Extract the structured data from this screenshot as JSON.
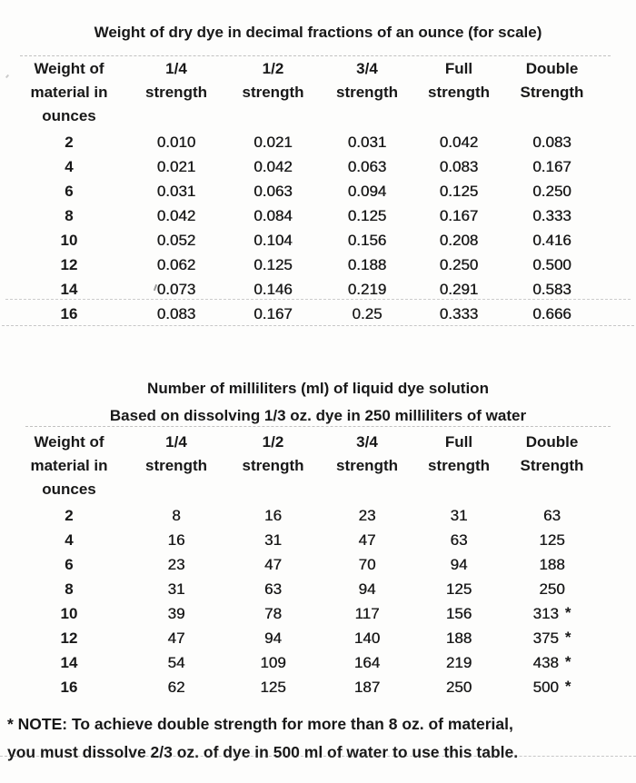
{
  "page": {
    "background_color": "#fdfdfc",
    "text_color": "#181818"
  },
  "table1": {
    "title": "Weight of dry dye in decimal fractions of an ounce (for scale)",
    "columns": [
      [
        "Weight of",
        "material in",
        "ounces"
      ],
      [
        "1/4",
        "strength"
      ],
      [
        "1/2",
        "strength"
      ],
      [
        "3/4",
        "strength"
      ],
      [
        "Full",
        "strength"
      ],
      [
        "Double",
        "Strength"
      ]
    ],
    "rows": [
      {
        "ounces": "2",
        "values": [
          "0.010",
          "0.021",
          "0.031",
          "0.042",
          "0.083"
        ]
      },
      {
        "ounces": "4",
        "values": [
          "0.021",
          "0.042",
          "0.063",
          "0.083",
          "0.167"
        ]
      },
      {
        "ounces": "6",
        "values": [
          "0.031",
          "0.063",
          "0.094",
          "0.125",
          "0.250"
        ]
      },
      {
        "ounces": "8",
        "values": [
          "0.042",
          "0.084",
          "0.125",
          "0.167",
          "0.333"
        ]
      },
      {
        "ounces": "10",
        "values": [
          "0.052",
          "0.104",
          "0.156",
          "0.208",
          "0.416"
        ]
      },
      {
        "ounces": "12",
        "values": [
          "0.062",
          "0.125",
          "0.188",
          "0.250",
          "0.500"
        ]
      },
      {
        "ounces": "14",
        "values": [
          "0.073",
          "0.146",
          "0.219",
          "0.291",
          "0.583"
        ]
      },
      {
        "ounces": "16",
        "values": [
          "0.083",
          "0.167",
          "0.25",
          "0.333",
          "0.666"
        ]
      }
    ]
  },
  "table2": {
    "title": "Number of milliliters (ml) of liquid dye solution",
    "subtitle": "Based on dissolving 1/3 oz. dye in 250 milliliters of water",
    "columns": [
      [
        "Weight of",
        "material in",
        "ounces"
      ],
      [
        "1/4",
        "strength"
      ],
      [
        "1/2",
        "strength"
      ],
      [
        "3/4",
        "strength"
      ],
      [
        "Full",
        "strength"
      ],
      [
        "Double",
        "Strength"
      ]
    ],
    "rows": [
      {
        "ounces": "2",
        "values": [
          "8",
          "16",
          "23",
          "31",
          "63"
        ]
      },
      {
        "ounces": "4",
        "values": [
          "16",
          "31",
          "47",
          "63",
          "125"
        ]
      },
      {
        "ounces": "6",
        "values": [
          "23",
          "47",
          "70",
          "94",
          "188"
        ]
      },
      {
        "ounces": "8",
        "values": [
          "31",
          "63",
          "94",
          "125",
          "250"
        ]
      },
      {
        "ounces": "10",
        "values": [
          "39",
          "78",
          "117",
          "156",
          "313"
        ],
        "note": "*"
      },
      {
        "ounces": "12",
        "values": [
          "47",
          "94",
          "140",
          "188",
          "375"
        ],
        "note": "*"
      },
      {
        "ounces": "14",
        "values": [
          "54",
          "109",
          "164",
          "219",
          "438"
        ],
        "note": "*"
      },
      {
        "ounces": "16",
        "values": [
          "62",
          "125",
          "187",
          "250",
          "500"
        ],
        "note": "*"
      }
    ]
  },
  "footnote": {
    "line1": "* NOTE: To achieve double strength for more than 8 oz. of material,",
    "line2": "you must dissolve 2/3 oz. of dye in 500 ml of water to use this table."
  }
}
